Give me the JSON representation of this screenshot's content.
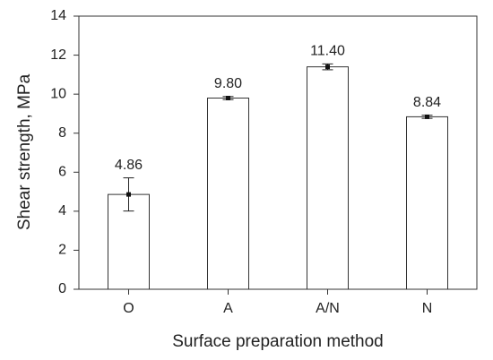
{
  "chart_data": {
    "type": "bar",
    "x_label": "Surface preparation method",
    "y_label": "Shear strength, MPa",
    "categories": [
      "O",
      "A",
      "A/N",
      "N"
    ],
    "values": [
      4.86,
      9.8,
      11.4,
      8.84
    ],
    "value_labels": [
      "4.86",
      "9.80",
      "11.40",
      "8.84"
    ],
    "errors": [
      0.85,
      0.08,
      0.15,
      0.08
    ],
    "color": "#ffffff",
    "ylim": [
      0,
      14
    ],
    "yticks": [
      0,
      2,
      4,
      6,
      8,
      10,
      12,
      14
    ],
    "grid": false
  }
}
